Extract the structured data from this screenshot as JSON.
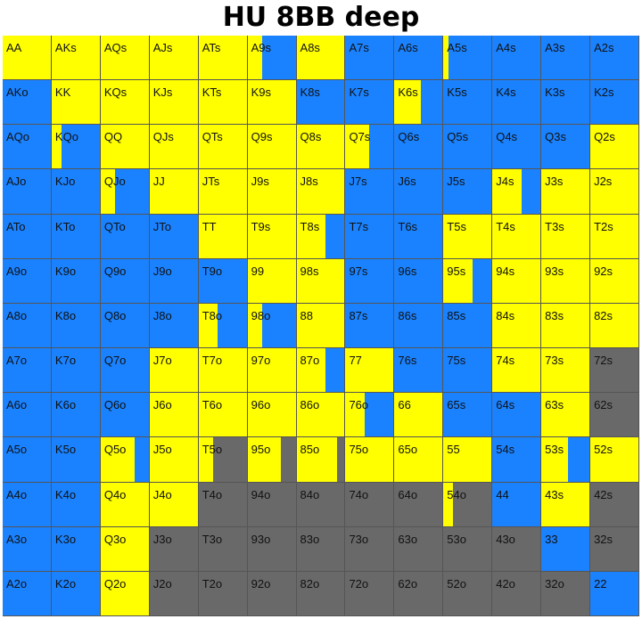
{
  "title": "HU 8BB deep",
  "chart_data": {
    "type": "heatmap",
    "title": "HU 8BB deep",
    "legend": [],
    "colors": {
      "yellow": "#ffff00",
      "blue": "#1a82ff",
      "gray": "#696969"
    },
    "rows": [
      [
        "AA",
        "AKs",
        "AQs",
        "AJs",
        "ATs",
        "A9s",
        "A8s",
        "A7s",
        "A6s",
        "A5s",
        "A4s",
        "A3s",
        "A2s"
      ],
      [
        "AKo",
        "KK",
        "KQs",
        "KJs",
        "KTs",
        "K9s",
        "K8s",
        "K7s",
        "K6s",
        "K5s",
        "K4s",
        "K3s",
        "K2s"
      ],
      [
        "AQo",
        "KQo",
        "QQ",
        "QJs",
        "QTs",
        "Q9s",
        "Q8s",
        "Q7s",
        "Q6s",
        "Q5s",
        "Q4s",
        "Q3s",
        "Q2s"
      ],
      [
        "AJo",
        "KJo",
        "QJo",
        "JJ",
        "JTs",
        "J9s",
        "J8s",
        "J7s",
        "J6s",
        "J5s",
        "J4s",
        "J3s",
        "J2s"
      ],
      [
        "ATo",
        "KTo",
        "QTo",
        "JTo",
        "TT",
        "T9s",
        "T8s",
        "T7s",
        "T6s",
        "T5s",
        "T4s",
        "T3s",
        "T2s"
      ],
      [
        "A9o",
        "K9o",
        "Q9o",
        "J9o",
        "T9o",
        "99",
        "98s",
        "97s",
        "96s",
        "95s",
        "94s",
        "93s",
        "92s"
      ],
      [
        "A8o",
        "K8o",
        "Q8o",
        "J8o",
        "T8o",
        "98o",
        "88",
        "87s",
        "86s",
        "85s",
        "84s",
        "83s",
        "82s"
      ],
      [
        "A7o",
        "K7o",
        "Q7o",
        "J7o",
        "T7o",
        "97o",
        "87o",
        "77",
        "76s",
        "75s",
        "74s",
        "73s",
        "72s"
      ],
      [
        "A6o",
        "K6o",
        "Q6o",
        "J6o",
        "T6o",
        "96o",
        "86o",
        "76o",
        "66",
        "65s",
        "64s",
        "63s",
        "62s"
      ],
      [
        "A5o",
        "K5o",
        "Q5o",
        "J5o",
        "T5o",
        "95o",
        "85o",
        "75o",
        "65o",
        "55",
        "54s",
        "53s",
        "52s"
      ],
      [
        "A4o",
        "K4o",
        "Q4o",
        "J4o",
        "T4o",
        "94o",
        "84o",
        "74o",
        "64o",
        "54o",
        "44",
        "43s",
        "42s"
      ],
      [
        "A3o",
        "K3o",
        "Q3o",
        "J3o",
        "T3o",
        "93o",
        "83o",
        "73o",
        "63o",
        "53o",
        "43o",
        "33",
        "32s"
      ],
      [
        "A2o",
        "K2o",
        "Q2o",
        "J2o",
        "T2o",
        "92o",
        "82o",
        "72o",
        "62o",
        "52o",
        "42o",
        "32o",
        "22"
      ]
    ],
    "cells": [
      [
        [
          [
            "yellow",
            1
          ]
        ],
        [
          [
            "yellow",
            1
          ]
        ],
        [
          [
            "yellow",
            1
          ]
        ],
        [
          [
            "yellow",
            1
          ]
        ],
        [
          [
            "yellow",
            1
          ]
        ],
        [
          [
            "yellow",
            0.3
          ],
          [
            "blue",
            0.7
          ]
        ],
        [
          [
            "yellow",
            1
          ]
        ],
        [
          [
            "blue",
            1
          ]
        ],
        [
          [
            "blue",
            1
          ]
        ],
        [
          [
            "yellow",
            0.1
          ],
          [
            "blue",
            0.9
          ]
        ],
        [
          [
            "blue",
            1
          ]
        ],
        [
          [
            "blue",
            1
          ]
        ],
        [
          [
            "blue",
            1
          ]
        ]
      ],
      [
        [
          [
            "blue",
            1
          ]
        ],
        [
          [
            "yellow",
            1
          ]
        ],
        [
          [
            "yellow",
            1
          ]
        ],
        [
          [
            "yellow",
            1
          ]
        ],
        [
          [
            "yellow",
            1
          ]
        ],
        [
          [
            "yellow",
            1
          ]
        ],
        [
          [
            "blue",
            1
          ]
        ],
        [
          [
            "blue",
            1
          ]
        ],
        [
          [
            "yellow",
            0.55
          ],
          [
            "blue",
            0.45
          ]
        ],
        [
          [
            "blue",
            1
          ]
        ],
        [
          [
            "blue",
            1
          ]
        ],
        [
          [
            "blue",
            1
          ]
        ],
        [
          [
            "blue",
            1
          ]
        ]
      ],
      [
        [
          [
            "blue",
            1
          ]
        ],
        [
          [
            "yellow",
            0.2
          ],
          [
            "blue",
            0.8
          ]
        ],
        [
          [
            "yellow",
            1
          ]
        ],
        [
          [
            "yellow",
            1
          ]
        ],
        [
          [
            "yellow",
            1
          ]
        ],
        [
          [
            "yellow",
            1
          ]
        ],
        [
          [
            "yellow",
            1
          ]
        ],
        [
          [
            "yellow",
            0.5
          ],
          [
            "blue",
            0.5
          ]
        ],
        [
          [
            "blue",
            1
          ]
        ],
        [
          [
            "blue",
            1
          ]
        ],
        [
          [
            "blue",
            1
          ]
        ],
        [
          [
            "blue",
            1
          ]
        ],
        [
          [
            "yellow",
            1
          ]
        ]
      ],
      [
        [
          [
            "blue",
            1
          ]
        ],
        [
          [
            "blue",
            1
          ]
        ],
        [
          [
            "yellow",
            0.3
          ],
          [
            "blue",
            0.7
          ]
        ],
        [
          [
            "yellow",
            1
          ]
        ],
        [
          [
            "yellow",
            1
          ]
        ],
        [
          [
            "yellow",
            1
          ]
        ],
        [
          [
            "yellow",
            1
          ]
        ],
        [
          [
            "blue",
            1
          ]
        ],
        [
          [
            "blue",
            1
          ]
        ],
        [
          [
            "blue",
            1
          ]
        ],
        [
          [
            "yellow",
            0.6
          ],
          [
            "blue",
            0.4
          ]
        ],
        [
          [
            "yellow",
            1
          ]
        ],
        [
          [
            "yellow",
            1
          ]
        ]
      ],
      [
        [
          [
            "blue",
            1
          ]
        ],
        [
          [
            "blue",
            1
          ]
        ],
        [
          [
            "blue",
            1
          ]
        ],
        [
          [
            "blue",
            1
          ]
        ],
        [
          [
            "yellow",
            1
          ]
        ],
        [
          [
            "yellow",
            1
          ]
        ],
        [
          [
            "yellow",
            0.6
          ],
          [
            "blue",
            0.4
          ]
        ],
        [
          [
            "blue",
            1
          ]
        ],
        [
          [
            "blue",
            1
          ]
        ],
        [
          [
            "yellow",
            1
          ]
        ],
        [
          [
            "yellow",
            1
          ]
        ],
        [
          [
            "yellow",
            1
          ]
        ],
        [
          [
            "yellow",
            1
          ]
        ]
      ],
      [
        [
          [
            "blue",
            1
          ]
        ],
        [
          [
            "blue",
            1
          ]
        ],
        [
          [
            "blue",
            1
          ]
        ],
        [
          [
            "blue",
            1
          ]
        ],
        [
          [
            "blue",
            1
          ]
        ],
        [
          [
            "yellow",
            1
          ]
        ],
        [
          [
            "yellow",
            1
          ]
        ],
        [
          [
            "blue",
            1
          ]
        ],
        [
          [
            "blue",
            1
          ]
        ],
        [
          [
            "yellow",
            0.6
          ],
          [
            "blue",
            0.4
          ]
        ],
        [
          [
            "yellow",
            1
          ]
        ],
        [
          [
            "yellow",
            1
          ]
        ],
        [
          [
            "yellow",
            1
          ]
        ]
      ],
      [
        [
          [
            "blue",
            1
          ]
        ],
        [
          [
            "blue",
            1
          ]
        ],
        [
          [
            "blue",
            1
          ]
        ],
        [
          [
            "blue",
            1
          ]
        ],
        [
          [
            "yellow",
            0.4
          ],
          [
            "blue",
            0.6
          ]
        ],
        [
          [
            "yellow",
            0.3
          ],
          [
            "blue",
            0.7
          ]
        ],
        [
          [
            "yellow",
            1
          ]
        ],
        [
          [
            "blue",
            1
          ]
        ],
        [
          [
            "blue",
            1
          ]
        ],
        [
          [
            "blue",
            1
          ]
        ],
        [
          [
            "yellow",
            1
          ]
        ],
        [
          [
            "yellow",
            1
          ]
        ],
        [
          [
            "yellow",
            1
          ]
        ]
      ],
      [
        [
          [
            "blue",
            1
          ]
        ],
        [
          [
            "blue",
            1
          ]
        ],
        [
          [
            "blue",
            1
          ]
        ],
        [
          [
            "yellow",
            1
          ]
        ],
        [
          [
            "yellow",
            1
          ]
        ],
        [
          [
            "yellow",
            1
          ]
        ],
        [
          [
            "yellow",
            0.6
          ],
          [
            "blue",
            0.4
          ]
        ],
        [
          [
            "yellow",
            1
          ]
        ],
        [
          [
            "blue",
            1
          ]
        ],
        [
          [
            "blue",
            1
          ]
        ],
        [
          [
            "yellow",
            1
          ]
        ],
        [
          [
            "yellow",
            1
          ]
        ],
        [
          [
            "gray",
            1
          ]
        ]
      ],
      [
        [
          [
            "blue",
            1
          ]
        ],
        [
          [
            "blue",
            1
          ]
        ],
        [
          [
            "blue",
            1
          ]
        ],
        [
          [
            "yellow",
            1
          ]
        ],
        [
          [
            "yellow",
            1
          ]
        ],
        [
          [
            "yellow",
            1
          ]
        ],
        [
          [
            "yellow",
            1
          ]
        ],
        [
          [
            "yellow",
            0.4
          ],
          [
            "blue",
            0.6
          ]
        ],
        [
          [
            "yellow",
            1
          ]
        ],
        [
          [
            "blue",
            1
          ]
        ],
        [
          [
            "blue",
            1
          ]
        ],
        [
          [
            "yellow",
            1
          ]
        ],
        [
          [
            "gray",
            1
          ]
        ]
      ],
      [
        [
          [
            "blue",
            1
          ]
        ],
        [
          [
            "blue",
            1
          ]
        ],
        [
          [
            "yellow",
            0.7
          ],
          [
            "blue",
            0.3
          ]
        ],
        [
          [
            "yellow",
            1
          ]
        ],
        [
          [
            "yellow",
            0.3
          ],
          [
            "gray",
            0.7
          ]
        ],
        [
          [
            "yellow",
            0.7
          ],
          [
            "gray",
            0.3
          ]
        ],
        [
          [
            "yellow",
            0.85
          ],
          [
            "gray",
            0.15
          ]
        ],
        [
          [
            "yellow",
            1
          ]
        ],
        [
          [
            "yellow",
            1
          ]
        ],
        [
          [
            "yellow",
            1
          ]
        ],
        [
          [
            "blue",
            1
          ]
        ],
        [
          [
            "yellow",
            0.55
          ],
          [
            "blue",
            0.45
          ]
        ],
        [
          [
            "yellow",
            1
          ]
        ]
      ],
      [
        [
          [
            "blue",
            1
          ]
        ],
        [
          [
            "blue",
            1
          ]
        ],
        [
          [
            "yellow",
            1
          ]
        ],
        [
          [
            "yellow",
            1
          ]
        ],
        [
          [
            "gray",
            1
          ]
        ],
        [
          [
            "gray",
            1
          ]
        ],
        [
          [
            "gray",
            1
          ]
        ],
        [
          [
            "gray",
            1
          ]
        ],
        [
          [
            "gray",
            1
          ]
        ],
        [
          [
            "yellow",
            0.2
          ],
          [
            "gray",
            0.8
          ]
        ],
        [
          [
            "blue",
            1
          ]
        ],
        [
          [
            "yellow",
            1
          ]
        ],
        [
          [
            "gray",
            1
          ]
        ]
      ],
      [
        [
          [
            "blue",
            1
          ]
        ],
        [
          [
            "blue",
            1
          ]
        ],
        [
          [
            "yellow",
            1
          ]
        ],
        [
          [
            "gray",
            1
          ]
        ],
        [
          [
            "gray",
            1
          ]
        ],
        [
          [
            "gray",
            1
          ]
        ],
        [
          [
            "gray",
            1
          ]
        ],
        [
          [
            "gray",
            1
          ]
        ],
        [
          [
            "gray",
            1
          ]
        ],
        [
          [
            "gray",
            1
          ]
        ],
        [
          [
            "gray",
            1
          ]
        ],
        [
          [
            "blue",
            1
          ]
        ],
        [
          [
            "gray",
            1
          ]
        ]
      ],
      [
        [
          [
            "blue",
            1
          ]
        ],
        [
          [
            "blue",
            1
          ]
        ],
        [
          [
            "yellow",
            1
          ]
        ],
        [
          [
            "gray",
            1
          ]
        ],
        [
          [
            "gray",
            1
          ]
        ],
        [
          [
            "gray",
            1
          ]
        ],
        [
          [
            "gray",
            1
          ]
        ],
        [
          [
            "gray",
            1
          ]
        ],
        [
          [
            "gray",
            1
          ]
        ],
        [
          [
            "gray",
            1
          ]
        ],
        [
          [
            "gray",
            1
          ]
        ],
        [
          [
            "gray",
            1
          ]
        ],
        [
          [
            "blue",
            1
          ]
        ]
      ]
    ]
  }
}
